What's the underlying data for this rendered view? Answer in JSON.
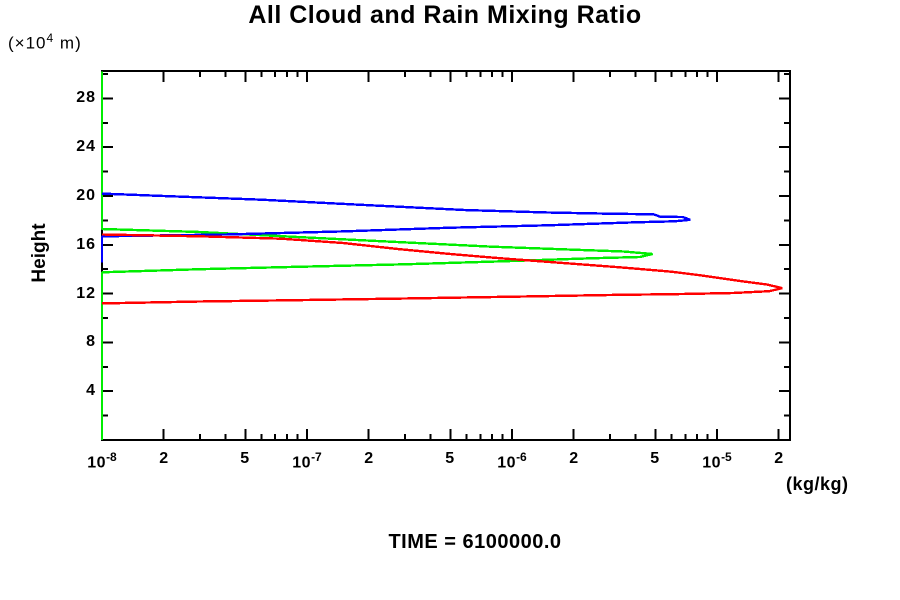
{
  "chart_data": {
    "type": "line",
    "title": "All Cloud and Rain Mixing Ratio",
    "footer": "TIME = 6100000.0",
    "grid": false,
    "legend": "none",
    "x_axis": {
      "unit_label": "(kg/kg)",
      "scale": "log10",
      "min": 1e-08,
      "max": 2.27e-05,
      "labeled_ticks": [
        {
          "text": "10",
          "sup": "-8",
          "value": 1e-08
        },
        {
          "text": "2",
          "sup": "",
          "value": 2e-08
        },
        {
          "text": "5",
          "sup": "",
          "value": 5e-08
        },
        {
          "text": "10",
          "sup": "-7",
          "value": 1e-07
        },
        {
          "text": "2",
          "sup": "",
          "value": 2e-07
        },
        {
          "text": "5",
          "sup": "",
          "value": 5e-07
        },
        {
          "text": "10",
          "sup": "-6",
          "value": 1e-06
        },
        {
          "text": "2",
          "sup": "",
          "value": 2e-06
        },
        {
          "text": "5",
          "sup": "",
          "value": 5e-06
        },
        {
          "text": "10",
          "sup": "-5",
          "value": 1e-05
        },
        {
          "text": "2",
          "sup": "",
          "value": 2e-05
        }
      ]
    },
    "height_axis": {
      "label": "Height",
      "unit_pre": "(×10",
      "unit_sup": "4",
      "unit_post": " m)",
      "min": 0,
      "max": 30.25,
      "minor_tick_step": 2,
      "labeled_ticks": [
        {
          "text": "4",
          "value": 4
        },
        {
          "text": "8",
          "value": 8
        },
        {
          "text": "12",
          "value": 12
        },
        {
          "text": "16",
          "value": 16
        },
        {
          "text": "20",
          "value": 20
        },
        {
          "text": "24",
          "value": 24
        },
        {
          "text": "28",
          "value": 28
        }
      ]
    },
    "series": [
      {
        "name": "green-curve",
        "color": "#00ee00",
        "points": [
          [
            1e-08,
            30.2
          ],
          [
            1e-08,
            17.3
          ],
          [
            3e-08,
            17.05
          ],
          [
            1e-07,
            16.6
          ],
          [
            3e-07,
            16.2
          ],
          [
            8e-07,
            15.85
          ],
          [
            2e-06,
            15.6
          ],
          [
            3.5e-06,
            15.45
          ],
          [
            4.85e-06,
            15.25
          ],
          [
            4.2e-06,
            15.0
          ],
          [
            2.5e-06,
            14.9
          ],
          [
            9e-07,
            14.65
          ],
          [
            3e-07,
            14.4
          ],
          [
            9e-08,
            14.2
          ],
          [
            3e-08,
            14.0
          ],
          [
            1e-08,
            13.75
          ],
          [
            1e-08,
            0.0
          ]
        ]
      },
      {
        "name": "blue-curve",
        "color": "#0000ff",
        "points": [
          [
            1e-08,
            20.2
          ],
          [
            2e-08,
            20.0
          ],
          [
            6e-08,
            19.7
          ],
          [
            2e-07,
            19.25
          ],
          [
            6e-07,
            18.85
          ],
          [
            1.5e-06,
            18.65
          ],
          [
            3e-06,
            18.55
          ],
          [
            4.9e-06,
            18.5
          ],
          [
            5.3e-06,
            18.3
          ],
          [
            6.8e-06,
            18.28
          ],
          [
            7.4e-06,
            18.05
          ],
          [
            6.2e-06,
            17.93
          ],
          [
            4e-06,
            17.85
          ],
          [
            1.5e-06,
            17.6
          ],
          [
            5e-07,
            17.4
          ],
          [
            1.5e-07,
            17.1
          ],
          [
            4e-08,
            16.85
          ],
          [
            1e-08,
            16.7
          ],
          [
            1e-08,
            14.55
          ]
        ]
      },
      {
        "name": "red-curve",
        "color": "#ff0000",
        "points": [
          [
            1e-08,
            16.85
          ],
          [
            3e-08,
            16.7
          ],
          [
            7.5e-08,
            16.5
          ],
          [
            1.5e-07,
            16.15
          ],
          [
            2.8e-07,
            15.65
          ],
          [
            5e-07,
            15.25
          ],
          [
            8.7e-07,
            14.9
          ],
          [
            1.8e-06,
            14.5
          ],
          [
            3.4e-06,
            14.15
          ],
          [
            6e-06,
            13.8
          ],
          [
            8.3e-06,
            13.5
          ],
          [
            1.34e-05,
            13.0
          ],
          [
            1.75e-05,
            12.75
          ],
          [
            2.08e-05,
            12.45
          ],
          [
            1.8e-05,
            12.2
          ],
          [
            1.2e-05,
            12.05
          ],
          [
            6e-06,
            11.95
          ],
          [
            3.4e-06,
            11.9
          ],
          [
            1e-06,
            11.75
          ],
          [
            3e-07,
            11.6
          ],
          [
            8e-08,
            11.45
          ],
          [
            3e-08,
            11.35
          ],
          [
            1e-08,
            11.2
          ]
        ]
      }
    ],
    "frame_color": "#000000"
  }
}
